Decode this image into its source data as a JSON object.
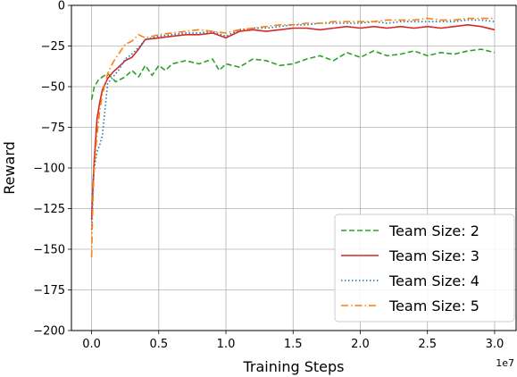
{
  "chart_data": {
    "type": "line",
    "xlabel": "Training Steps",
    "ylabel": "Reward",
    "x_offset_label": "1e7",
    "xlim": [
      -0.15,
      3.16
    ],
    "ylim": [
      -200,
      0
    ],
    "grid": true,
    "legend_position": "lower-right",
    "x_ticks": [
      0.0,
      0.5,
      1.0,
      1.5,
      2.0,
      2.5,
      3.0
    ],
    "x_tick_labels": [
      "0.0",
      "0.5",
      "1.0",
      "1.5",
      "2.0",
      "2.5",
      "3.0"
    ],
    "y_ticks": [
      0,
      -25,
      -50,
      -75,
      -100,
      -125,
      -150,
      -175,
      -200
    ],
    "y_tick_labels": [
      "0",
      "−25",
      "−50",
      "−75",
      "−100",
      "−125",
      "−150",
      "−175",
      "−200"
    ],
    "series": [
      {
        "name": "Team Size: 2",
        "color": "#2ca02c",
        "dash": "6,3",
        "x": [
          0,
          0.02,
          0.05,
          0.08,
          0.12,
          0.18,
          0.25,
          0.3,
          0.35,
          0.4,
          0.45,
          0.5,
          0.55,
          0.6,
          0.7,
          0.8,
          0.9,
          0.95,
          1.0,
          1.1,
          1.2,
          1.3,
          1.4,
          1.5,
          1.6,
          1.7,
          1.8,
          1.9,
          2.0,
          2.1,
          2.2,
          2.3,
          2.4,
          2.5,
          2.6,
          2.7,
          2.8,
          2.9,
          3.0
        ],
        "y": [
          -58,
          -50,
          -46,
          -44,
          -42,
          -47,
          -44,
          -40,
          -44,
          -37,
          -43,
          -37,
          -40,
          -36,
          -34,
          -36,
          -33,
          -40,
          -36,
          -38,
          -33,
          -34,
          -37,
          -36,
          -33,
          -31,
          -34,
          -29,
          -32,
          -28,
          -31,
          -30,
          -28,
          -31,
          -29,
          -30,
          -28,
          -27,
          -29
        ]
      },
      {
        "name": "Team Size: 3",
        "color": "#d62728",
        "dash": "",
        "x": [
          0,
          0.01,
          0.02,
          0.04,
          0.06,
          0.08,
          0.12,
          0.16,
          0.2,
          0.25,
          0.3,
          0.35,
          0.4,
          0.5,
          0.6,
          0.7,
          0.8,
          0.9,
          1.0,
          1.1,
          1.2,
          1.3,
          1.4,
          1.5,
          1.6,
          1.7,
          1.8,
          1.9,
          2.0,
          2.1,
          2.2,
          2.3,
          2.4,
          2.5,
          2.6,
          2.7,
          2.8,
          2.9,
          3.0
        ],
        "y": [
          -132,
          -110,
          -95,
          -70,
          -60,
          -52,
          -45,
          -41,
          -38,
          -34,
          -32,
          -27,
          -21,
          -20,
          -19,
          -18,
          -18,
          -17,
          -20,
          -16,
          -15,
          -16,
          -15,
          -14,
          -14,
          -15,
          -14,
          -13,
          -14,
          -13,
          -14,
          -13,
          -14,
          -13,
          -14,
          -13,
          -12,
          -13,
          -15
        ]
      },
      {
        "name": "Team Size: 4",
        "color": "#1f77b4",
        "dash": "1.5,2.5",
        "x": [
          0,
          0.01,
          0.02,
          0.04,
          0.06,
          0.08,
          0.12,
          0.16,
          0.2,
          0.25,
          0.3,
          0.35,
          0.4,
          0.5,
          0.6,
          0.7,
          0.8,
          0.9,
          1.0,
          1.1,
          1.2,
          1.3,
          1.4,
          1.5,
          1.6,
          1.7,
          1.8,
          1.9,
          2.0,
          2.1,
          2.2,
          2.3,
          2.4,
          2.5,
          2.6,
          2.7,
          2.8,
          2.9,
          3.0
        ],
        "y": [
          -138,
          -115,
          -100,
          -90,
          -86,
          -80,
          -48,
          -44,
          -40,
          -33,
          -30,
          -26,
          -21,
          -19,
          -18,
          -17,
          -17,
          -16,
          -19,
          -15,
          -14,
          -14,
          -13,
          -12,
          -12,
          -11,
          -11,
          -11,
          -11,
          -10,
          -11,
          -10,
          -10,
          -10,
          -10,
          -10,
          -9,
          -9,
          -10
        ]
      },
      {
        "name": "Team Size: 5",
        "color": "#ff7f0e",
        "dash": "8,3,1.5,3",
        "x": [
          0,
          0.01,
          0.02,
          0.04,
          0.06,
          0.08,
          0.12,
          0.16,
          0.2,
          0.25,
          0.3,
          0.35,
          0.4,
          0.5,
          0.6,
          0.7,
          0.8,
          0.9,
          1.0,
          1.1,
          1.2,
          1.3,
          1.4,
          1.5,
          1.6,
          1.7,
          1.8,
          1.9,
          2.0,
          2.1,
          2.2,
          2.3,
          2.4,
          2.5,
          2.6,
          2.7,
          2.8,
          2.9,
          3.0
        ],
        "y": [
          -155,
          -118,
          -100,
          -80,
          -65,
          -55,
          -42,
          -35,
          -30,
          -24,
          -22,
          -18,
          -20,
          -18,
          -17,
          -16,
          -15,
          -16,
          -17,
          -15,
          -14,
          -13,
          -12,
          -12,
          -11,
          -11,
          -10,
          -10,
          -10,
          -10,
          -9,
          -9,
          -9,
          -8,
          -9,
          -9,
          -8,
          -8,
          -8
        ]
      }
    ]
  }
}
